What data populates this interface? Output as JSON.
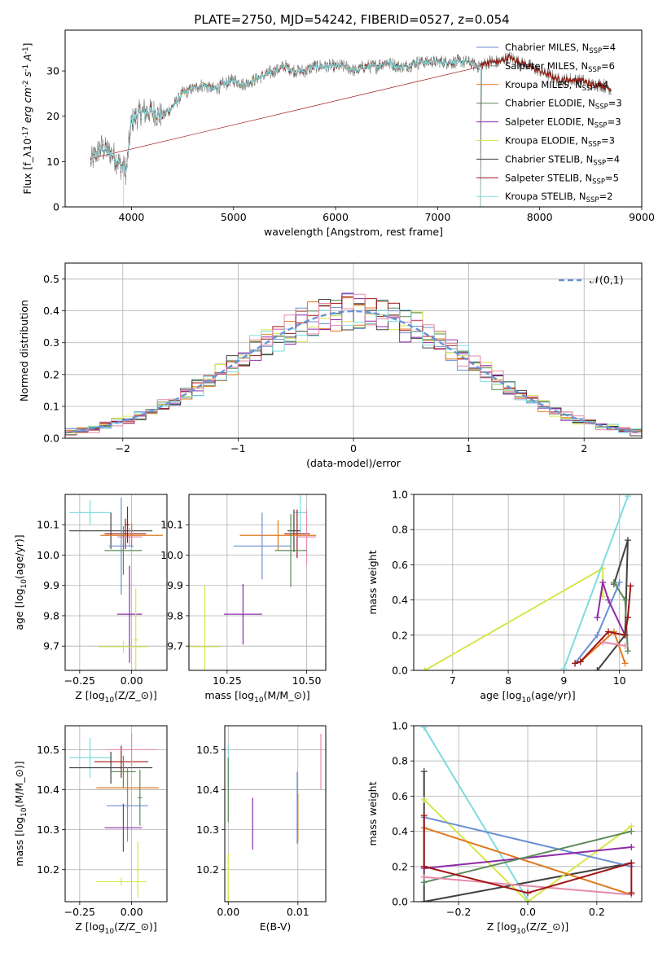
{
  "title": "PLATE=2750, MJD=54242, FIBERID=0527, z=0.054",
  "colors": {
    "chabrier_miles": "#6b8fd6",
    "salpeter_miles": "#808080",
    "kroupa_miles": "#e07a1c",
    "chabrier_elodie": "#5a8a5a",
    "salpeter_elodie": "#8e2aa8",
    "kroupa_elodie": "#d7e64a",
    "chabrier_stelib": "#404040",
    "salpeter_stelib": "#a01515",
    "kroupa_stelib": "#7fdbe0",
    "pink": "#e58aaa",
    "normal": "#6a93d6",
    "grid": "#b0b0b0"
  },
  "chart_data": [
    {
      "type": "line",
      "xlabel": "wavelength [Angstrom, rest frame]",
      "ylabel": "Flux [f$_\\lambda$10$^{-17}$ erg cm$^{-2}$ s$^{-1}$ A$^{-1}$]",
      "xlim": [
        3350,
        9000
      ],
      "ylim": [
        0,
        39
      ],
      "xticks": [
        4000,
        5000,
        6000,
        7000,
        8000,
        9000
      ],
      "yticks": [
        0,
        10,
        20,
        30
      ],
      "legend_position": "right",
      "legend": [
        {
          "label": "Chabrier MILES, N",
          "sub": "SSP",
          "eq": "=4"
        },
        {
          "label": "Salpeter MILES, N",
          "sub": "SSP",
          "eq": "=6"
        },
        {
          "label": "Kroupa MILES, N",
          "sub": "SSP",
          "eq": "=4"
        },
        {
          "label": "Chabrier ELODIE, N",
          "sub": "SSP",
          "eq": "=3"
        },
        {
          "label": "Salpeter ELODIE, N",
          "sub": "SSP",
          "eq": "=3"
        },
        {
          "label": "Kroupa ELODIE, N",
          "sub": "SSP",
          "eq": "=3"
        },
        {
          "label": "Chabrier STELIB, N",
          "sub": "SSP",
          "eq": "=4"
        },
        {
          "label": "Salpeter STELIB, N",
          "sub": "SSP",
          "eq": "=5"
        },
        {
          "label": "Kroupa STELIB, N",
          "sub": "SSP",
          "eq": "=2"
        }
      ],
      "spectrum": {
        "x": [
          3600,
          3700,
          3800,
          3900,
          3950,
          4000,
          4100,
          4200,
          4300,
          4400,
          4500,
          4600,
          4700,
          4800,
          4900,
          5000,
          5100,
          5200,
          5300,
          5400,
          5500,
          5600,
          5700,
          5800,
          5900,
          6000,
          6100,
          6200,
          6300,
          6400,
          6500,
          6600,
          6700,
          6800,
          6900,
          7000,
          7100,
          7200,
          7300,
          7400,
          7500,
          7600,
          7700,
          7800,
          7900,
          8000,
          8100,
          8200,
          8300,
          8400,
          8500,
          8600,
          8700
        ],
        "y": [
          10,
          13,
          12,
          9,
          8,
          19,
          21,
          21,
          20,
          22,
          25,
          26,
          27,
          26,
          27,
          28,
          27,
          28,
          29,
          30,
          31,
          30,
          30,
          31,
          31,
          31,
          31,
          30,
          31,
          31,
          32,
          31,
          31,
          32,
          32,
          32,
          32,
          32,
          32,
          31,
          32,
          32,
          33,
          32,
          31,
          30,
          29,
          28,
          28,
          28,
          27,
          27,
          26
        ]
      }
    },
    {
      "type": "line",
      "xlabel": "(data-model)/error",
      "ylabel": "Normed distribution",
      "xlim": [
        -2.5,
        2.5
      ],
      "ylim": [
        0,
        0.55
      ],
      "xticks": [
        -2,
        -1,
        0,
        1,
        2
      ],
      "yticks": [
        0.0,
        0.1,
        0.2,
        0.3,
        0.4,
        0.5
      ],
      "legend_position": "upper right",
      "legend_label": "$\\mathcal{N}(0,1)$",
      "series": [
        {
          "name": "$\\mathcal{N}(0,1)$",
          "mean": 0,
          "sigma": 1
        }
      ],
      "histogram_bin_width": 0.1
    },
    {
      "type": "scatter",
      "xlabel": "Z [log$_{10}$($Z/Z_\\odot$)]",
      "ylabel": "age  [log$_{10}$($age/yr$)]",
      "xlim": [
        -0.32,
        0.17
      ],
      "ylim": [
        9.62,
        10.2
      ],
      "xticks": [
        -0.25,
        0.0
      ],
      "xtick_labels": [
        "−0.25",
        "0.00"
      ],
      "yticks": [
        9.7,
        9.8,
        9.9,
        10.0,
        10.1
      ],
      "points": [
        {
          "x": -0.2,
          "y": 10.14,
          "xerr": 0.1,
          "yerr": 0.04,
          "c": "kroupa_stelib"
        },
        {
          "x": -0.1,
          "y": 10.08,
          "xerr": 0.2,
          "yerr": 0.06,
          "c": "chabrier_stelib"
        },
        {
          "x": -0.03,
          "y": 10.07,
          "xerr": 0.1,
          "yerr": 0.05,
          "c": "salpeter_stelib"
        },
        {
          "x": 0.0,
          "y": 10.065,
          "xerr": 0.15,
          "yerr": 0.04,
          "c": "kroupa_miles"
        },
        {
          "x": -0.01,
          "y": 10.06,
          "xerr": 0.06,
          "yerr": 0.03,
          "c": "pink"
        },
        {
          "x": -0.05,
          "y": 10.03,
          "xerr": 0.06,
          "yerr": 0.16,
          "c": "chabrier_miles"
        },
        {
          "x": -0.04,
          "y": 10.015,
          "xerr": 0.09,
          "yerr": 0.08,
          "c": "chabrier_elodie"
        },
        {
          "x": -0.01,
          "y": 9.805,
          "xerr": 0.06,
          "yerr": 0.16,
          "c": "salpeter_elodie"
        },
        {
          "x": -0.04,
          "y": 9.698,
          "xerr": 0.12,
          "yerr": 0.02,
          "c": "kroupa_elodie"
        },
        {
          "x": 0.02,
          "y": 9.72,
          "xerr": 0.01,
          "yerr": 0.17,
          "c": "kroupa_elodie"
        },
        {
          "x": -0.02,
          "y": 10.1,
          "xerr": 0.01,
          "yerr": 0.06,
          "c": "salpeter_stelib"
        }
      ]
    },
    {
      "type": "scatter",
      "xlabel": "mass [log$_{10}$($M/M_\\odot$)]",
      "ylabel": "",
      "xlim": [
        10.13,
        10.56
      ],
      "ylim": [
        9.62,
        10.2
      ],
      "xticks": [
        10.25,
        10.5
      ],
      "xtick_labels": [
        "10.25",
        "10.50"
      ],
      "yticks": [
        9.7,
        9.8,
        9.9,
        10.0,
        10.1
      ],
      "points": [
        {
          "x": 10.48,
          "y": 10.14,
          "xerr": 0.02,
          "yerr": 0.07,
          "c": "kroupa_stelib"
        },
        {
          "x": 10.46,
          "y": 10.08,
          "xerr": 0.02,
          "yerr": 0.07,
          "c": "chabrier_stelib"
        },
        {
          "x": 10.47,
          "y": 10.07,
          "xerr": 0.04,
          "yerr": 0.08,
          "c": "salpeter_stelib"
        },
        {
          "x": 10.41,
          "y": 10.065,
          "xerr": 0.12,
          "yerr": 0.05,
          "c": "kroupa_miles"
        },
        {
          "x": 10.5,
          "y": 10.06,
          "xerr": 0.03,
          "yerr": 0.09,
          "c": "pink"
        },
        {
          "x": 10.36,
          "y": 10.03,
          "xerr": 0.09,
          "yerr": 0.11,
          "c": "chabrier_miles"
        },
        {
          "x": 10.45,
          "y": 10.015,
          "xerr": 0.05,
          "yerr": 0.12,
          "c": "chabrier_elodie"
        },
        {
          "x": 10.3,
          "y": 9.805,
          "xerr": 0.06,
          "yerr": 0.1,
          "c": "salpeter_elodie"
        },
        {
          "x": 10.18,
          "y": 9.698,
          "xerr": 0.05,
          "yerr": 0.2,
          "c": "kroupa_elodie"
        }
      ]
    },
    {
      "type": "line",
      "xlabel": "age  [log$_{10}$($age/yr$)]",
      "ylabel": "mass weight",
      "xlim": [
        6.3,
        10.4
      ],
      "ylim": [
        0,
        1
      ],
      "xticks": [
        7,
        8,
        9,
        10
      ],
      "yticks": [
        0.0,
        0.2,
        0.4,
        0.6,
        0.8,
        1.0
      ],
      "series": [
        {
          "c": "kroupa_elodie",
          "x": [
            6.5,
            9.7,
            9.7
          ],
          "y": [
            0.0,
            0.58,
            0.42
          ]
        },
        {
          "c": "kroupa_stelib",
          "x": [
            9.0,
            10.15
          ],
          "y": [
            0.01,
            0.99
          ]
        },
        {
          "c": "chabrier_stelib",
          "x": [
            9.6,
            10.1,
            10.15,
            9.9
          ],
          "y": [
            0.0,
            0.2,
            0.74,
            0.49
          ]
        },
        {
          "c": "chabrier_miles",
          "x": [
            9.2,
            9.6,
            10.0
          ],
          "y": [
            0.04,
            0.2,
            0.5
          ]
        },
        {
          "c": "salpeter_elodie",
          "x": [
            9.6,
            9.7,
            9.8,
            10.1
          ],
          "y": [
            0.3,
            0.5,
            0.4,
            0.2
          ]
        },
        {
          "c": "chabrier_elodie",
          "x": [
            9.9,
            10.1,
            10.15
          ],
          "y": [
            0.5,
            0.4,
            0.11
          ]
        },
        {
          "c": "kroupa_miles",
          "x": [
            9.3,
            9.9,
            10.1
          ],
          "y": [
            0.05,
            0.22,
            0.04
          ]
        },
        {
          "c": "pink",
          "x": [
            9.7,
            10.1
          ],
          "y": [
            0.16,
            0.14
          ]
        },
        {
          "c": "salpeter_stelib",
          "x": [
            9.2,
            9.3,
            9.8,
            10.1,
            10.15,
            10.2
          ],
          "y": [
            0.04,
            0.05,
            0.22,
            0.2,
            0.3,
            0.48
          ]
        }
      ]
    },
    {
      "type": "scatter",
      "xlabel": "Z [log$_{10}$($Z/Z_\\odot$)]",
      "ylabel": "mass [log$_{10}$($M/M_\\odot$)]",
      "xlim": [
        -0.32,
        0.17
      ],
      "ylim": [
        10.12,
        10.56
      ],
      "xticks": [
        -0.25,
        0.0
      ],
      "xtick_labels": [
        "−0.25",
        "0.00"
      ],
      "yticks": [
        10.2,
        10.3,
        10.4,
        10.5
      ],
      "points": [
        {
          "x": -0.2,
          "y": 10.48,
          "xerr": 0.1,
          "yerr": 0.05,
          "c": "kroupa_stelib"
        },
        {
          "x": -0.1,
          "y": 10.455,
          "xerr": 0.2,
          "yerr": 0.04,
          "c": "chabrier_stelib"
        },
        {
          "x": -0.05,
          "y": 10.47,
          "xerr": 0.13,
          "yerr": 0.04,
          "c": "salpeter_stelib"
        },
        {
          "x": 0.0,
          "y": 10.5,
          "xerr": 0.12,
          "yerr": 0.04,
          "c": "pink"
        },
        {
          "x": -0.02,
          "y": 10.405,
          "xerr": 0.15,
          "yerr": 0.05,
          "c": "kroupa_miles"
        },
        {
          "x": -0.02,
          "y": 10.36,
          "xerr": 0.1,
          "yerr": 0.09,
          "c": "chabrier_miles"
        },
        {
          "x": -0.04,
          "y": 10.445,
          "xerr": 0.06,
          "yerr": 0.04,
          "c": "chabrier_elodie"
        },
        {
          "x": -0.04,
          "y": 10.305,
          "xerr": 0.09,
          "yerr": 0.06,
          "c": "salpeter_elodie"
        },
        {
          "x": -0.05,
          "y": 10.17,
          "xerr": 0.12,
          "yerr": 0.01,
          "c": "kroupa_elodie"
        },
        {
          "x": 0.03,
          "y": 10.2,
          "xerr": 0.01,
          "yerr": 0.07,
          "c": "kroupa_elodie"
        },
        {
          "x": 0.04,
          "y": 10.38,
          "xerr": 0.01,
          "yerr": 0.07,
          "c": "chabrier_elodie"
        }
      ]
    },
    {
      "type": "scatter",
      "xlabel": "E(B-V)",
      "ylabel": "",
      "xlim": [
        -0.0005,
        0.014
      ],
      "ylim": [
        10.12,
        10.56
      ],
      "xticks": [
        0.0,
        0.01
      ],
      "xtick_labels": [
        "0.00",
        "0.01"
      ],
      "yticks": [
        10.2,
        10.3,
        10.4,
        10.5
      ],
      "points": [
        {
          "x": 0.0,
          "y": 10.46,
          "xerr": 0,
          "yerr": 0.05,
          "c": "kroupa_stelib"
        },
        {
          "x": 0.0,
          "y": 10.4,
          "xerr": 0,
          "yerr": 0.08,
          "c": "chabrier_elodie"
        },
        {
          "x": 0.0,
          "y": 10.17,
          "xerr": 0,
          "yerr": 0.07,
          "c": "kroupa_elodie"
        },
        {
          "x": 0.0035,
          "y": 10.315,
          "xerr": 0,
          "yerr": 0.065,
          "c": "salpeter_elodie"
        },
        {
          "x": 0.0099,
          "y": 10.355,
          "xerr": 0,
          "yerr": 0.09,
          "c": "chabrier_miles"
        },
        {
          "x": 0.01,
          "y": 10.33,
          "xerr": 0,
          "yerr": 0.06,
          "c": "kroupa_miles"
        },
        {
          "x": 0.0133,
          "y": 10.47,
          "xerr": 0,
          "yerr": 0.07,
          "c": "pink"
        }
      ]
    },
    {
      "type": "line",
      "xlabel": "Z [log$_{10}$($Z/Z_\\odot$)]",
      "ylabel": "mass weight",
      "xlim": [
        -0.33,
        0.33
      ],
      "ylim": [
        0,
        1
      ],
      "xticks": [
        -0.2,
        0.0,
        0.2
      ],
      "xtick_labels": [
        "−0.2",
        "0.0",
        "0.2"
      ],
      "yticks": [
        0.0,
        0.2,
        0.4,
        0.6,
        0.8,
        1.0
      ],
      "series": [
        {
          "c": "kroupa_stelib",
          "x": [
            -0.3,
            0.0
          ],
          "y": [
            0.99,
            0.01
          ]
        },
        {
          "c": "chabrier_stelib",
          "x": [
            -0.3,
            -0.3,
            -0.3,
            0.3
          ],
          "y": [
            0.74,
            0.0,
            0.0,
            0.22
          ]
        },
        {
          "c": "kroupa_elodie",
          "x": [
            -0.3,
            0.0,
            0.3
          ],
          "y": [
            0.58,
            0.0,
            0.43
          ]
        },
        {
          "c": "chabrier_miles",
          "x": [
            -0.3,
            0.3
          ],
          "y": [
            0.48,
            0.2
          ]
        },
        {
          "c": "kroupa_miles",
          "x": [
            -0.3,
            0.3
          ],
          "y": [
            0.42,
            0.04
          ]
        },
        {
          "c": "salpeter_elodie",
          "x": [
            -0.3,
            0.3
          ],
          "y": [
            0.19,
            0.31
          ]
        },
        {
          "c": "chabrier_elodie",
          "x": [
            -0.3,
            0.3
          ],
          "y": [
            0.11,
            0.4
          ]
        },
        {
          "c": "pink",
          "x": [
            -0.3,
            0.3
          ],
          "y": [
            0.14,
            0.04
          ]
        },
        {
          "c": "salpeter_stelib",
          "x": [
            -0.3,
            -0.3,
            0.0,
            0.3,
            0.3
          ],
          "y": [
            0.49,
            0.2,
            0.05,
            0.22,
            0.05
          ]
        }
      ]
    }
  ]
}
